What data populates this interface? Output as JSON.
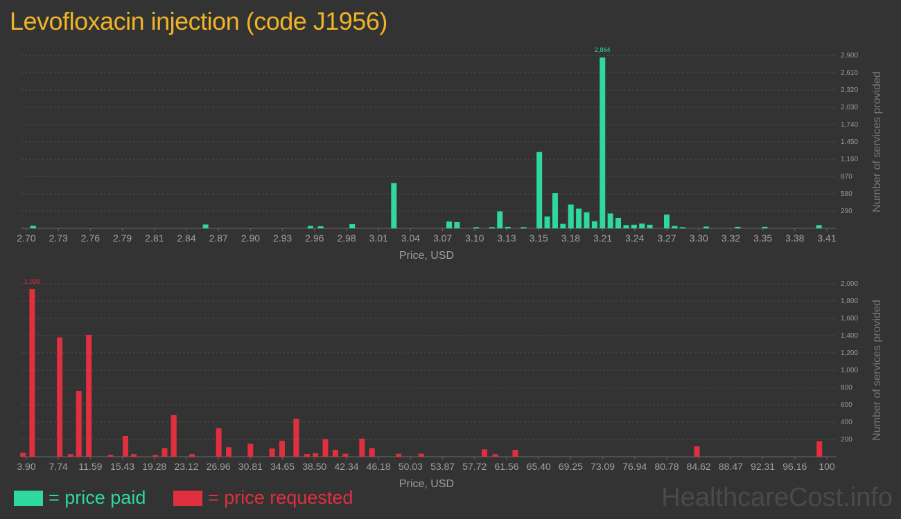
{
  "title": "Levofloxacin injection (code J1956)",
  "legend": {
    "paid_label": "= price paid",
    "requested_label": "= price requested"
  },
  "watermark": "HealthcareCost.info",
  "colors": {
    "paid": "#2ed8a0",
    "requested": "#e03040",
    "title": "#f0b428"
  },
  "chart_data": [
    {
      "type": "bar",
      "series_name": "price paid",
      "xlabel": "Price, USD",
      "ylabel": "Number of services provided",
      "ylim": [
        0,
        2900
      ],
      "y_ticks": [
        "290",
        "580",
        "870",
        "1,160",
        "1,450",
        "1,740",
        "2,030",
        "2,320",
        "2,610",
        "2,900"
      ],
      "x_tick_labels": [
        "2.70",
        "2.73",
        "2.76",
        "2.79",
        "2.81",
        "2.84",
        "2.87",
        "2.90",
        "2.93",
        "2.96",
        "2.98",
        "3.01",
        "3.04",
        "3.07",
        "3.10",
        "3.13",
        "3.15",
        "3.18",
        "3.21",
        "3.24",
        "3.27",
        "3.30",
        "3.32",
        "3.35",
        "3.38",
        "3.41"
      ],
      "x_range": [
        2.7,
        3.41
      ],
      "peak_label": "2,864",
      "bars": [
        {
          "x": 2.706,
          "y": 45
        },
        {
          "x": 2.859,
          "y": 65
        },
        {
          "x": 2.952,
          "y": 40
        },
        {
          "x": 2.961,
          "y": 35
        },
        {
          "x": 2.989,
          "y": 70
        },
        {
          "x": 3.026,
          "y": 760
        },
        {
          "x": 3.075,
          "y": 115
        },
        {
          "x": 3.082,
          "y": 105
        },
        {
          "x": 3.099,
          "y": 20
        },
        {
          "x": 3.113,
          "y": 20
        },
        {
          "x": 3.12,
          "y": 285
        },
        {
          "x": 3.127,
          "y": 25
        },
        {
          "x": 3.141,
          "y": 20
        },
        {
          "x": 3.155,
          "y": 1280
        },
        {
          "x": 3.162,
          "y": 200
        },
        {
          "x": 3.169,
          "y": 590
        },
        {
          "x": 3.176,
          "y": 75
        },
        {
          "x": 3.183,
          "y": 400
        },
        {
          "x": 3.19,
          "y": 330
        },
        {
          "x": 3.197,
          "y": 270
        },
        {
          "x": 3.204,
          "y": 120
        },
        {
          "x": 3.211,
          "y": 2864
        },
        {
          "x": 3.218,
          "y": 250
        },
        {
          "x": 3.225,
          "y": 175
        },
        {
          "x": 3.232,
          "y": 55
        },
        {
          "x": 3.239,
          "y": 60
        },
        {
          "x": 3.246,
          "y": 80
        },
        {
          "x": 3.253,
          "y": 60
        },
        {
          "x": 3.268,
          "y": 230
        },
        {
          "x": 3.275,
          "y": 40
        },
        {
          "x": 3.282,
          "y": 20
        },
        {
          "x": 3.303,
          "y": 30
        },
        {
          "x": 3.331,
          "y": 25
        },
        {
          "x": 3.355,
          "y": 25
        },
        {
          "x": 3.403,
          "y": 55
        }
      ]
    },
    {
      "type": "bar",
      "series_name": "price requested",
      "xlabel": "Price, USD",
      "ylabel": "Number of services provided",
      "ylim": [
        0,
        2000
      ],
      "y_ticks": [
        "200",
        "400",
        "600",
        "800",
        "1,000",
        "1,200",
        "1,400",
        "1,600",
        "1,800",
        "2,000"
      ],
      "x_tick_labels": [
        "3.90",
        "7.74",
        "11.59",
        "15.43",
        "19.28",
        "23.12",
        "26.96",
        "30.81",
        "34.65",
        "38.50",
        "42.34",
        "46.18",
        "50.03",
        "53.87",
        "57.72",
        "61.56",
        "65.40",
        "69.25",
        "73.09",
        "76.94",
        "80.78",
        "84.62",
        "88.47",
        "92.31",
        "96.16",
        "100"
      ],
      "x_range": [
        3.9,
        100
      ],
      "peak_label": "1,938",
      "bars": [
        {
          "x": 3.5,
          "y": 45
        },
        {
          "x": 4.6,
          "y": 1938
        },
        {
          "x": 7.9,
          "y": 1380
        },
        {
          "x": 9.2,
          "y": 30
        },
        {
          "x": 10.2,
          "y": 760
        },
        {
          "x": 11.4,
          "y": 1410
        },
        {
          "x": 14.0,
          "y": 20
        },
        {
          "x": 15.8,
          "y": 240
        },
        {
          "x": 16.8,
          "y": 30
        },
        {
          "x": 19.4,
          "y": 20
        },
        {
          "x": 20.5,
          "y": 100
        },
        {
          "x": 21.6,
          "y": 480
        },
        {
          "x": 23.8,
          "y": 30
        },
        {
          "x": 27.0,
          "y": 330
        },
        {
          "x": 28.2,
          "y": 110
        },
        {
          "x": 30.8,
          "y": 150
        },
        {
          "x": 33.4,
          "y": 95
        },
        {
          "x": 34.6,
          "y": 185
        },
        {
          "x": 36.3,
          "y": 440
        },
        {
          "x": 37.6,
          "y": 30
        },
        {
          "x": 38.6,
          "y": 40
        },
        {
          "x": 39.8,
          "y": 205
        },
        {
          "x": 41.0,
          "y": 80
        },
        {
          "x": 42.2,
          "y": 35
        },
        {
          "x": 44.2,
          "y": 210
        },
        {
          "x": 45.4,
          "y": 100
        },
        {
          "x": 48.6,
          "y": 35
        },
        {
          "x": 51.3,
          "y": 35
        },
        {
          "x": 58.9,
          "y": 85
        },
        {
          "x": 60.2,
          "y": 30
        },
        {
          "x": 62.6,
          "y": 80
        },
        {
          "x": 84.4,
          "y": 120
        },
        {
          "x": 99.1,
          "y": 180
        }
      ]
    }
  ]
}
